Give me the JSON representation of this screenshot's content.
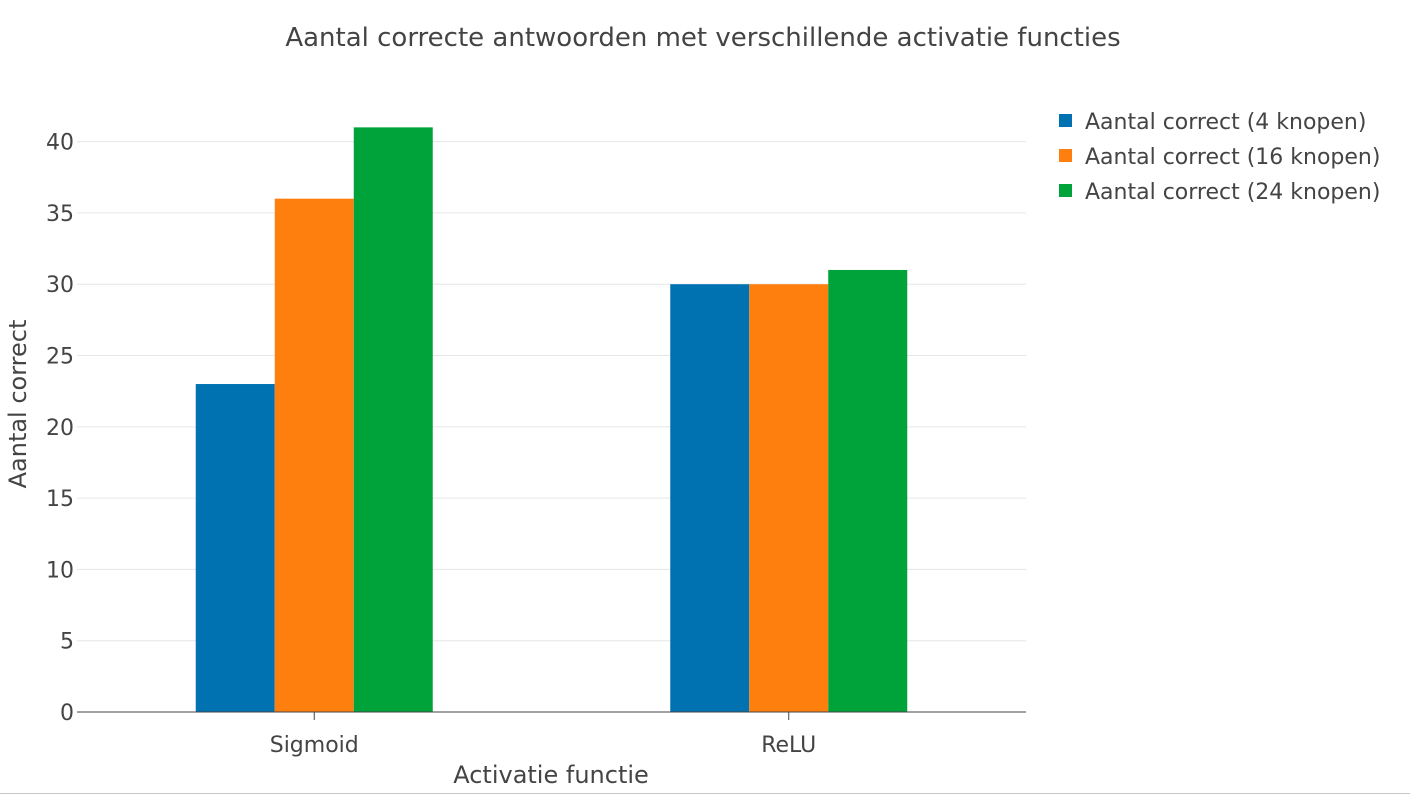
{
  "chart_data": {
    "type": "bar",
    "title": "Aantal correcte antwoorden met verschillende activatie functies",
    "xlabel": "Activatie functie",
    "ylabel": "Aantal correct",
    "categories": [
      "Sigmoid",
      "ReLU"
    ],
    "series": [
      {
        "name": "Aantal correct (4 knopen)",
        "values": [
          23,
          30
        ],
        "color": "#0072b2"
      },
      {
        "name": "Aantal correct (16 knopen)",
        "values": [
          36,
          30
        ],
        "color": "#ff7f0e"
      },
      {
        "name": "Aantal correct (24 knopen)",
        "values": [
          41,
          31
        ],
        "color": "#00a23a"
      }
    ],
    "ylim": [
      0,
      43.2
    ],
    "yticks": [
      0,
      5,
      10,
      15,
      20,
      25,
      30,
      35,
      40
    ],
    "grid": true,
    "legend_position": "top-right"
  }
}
